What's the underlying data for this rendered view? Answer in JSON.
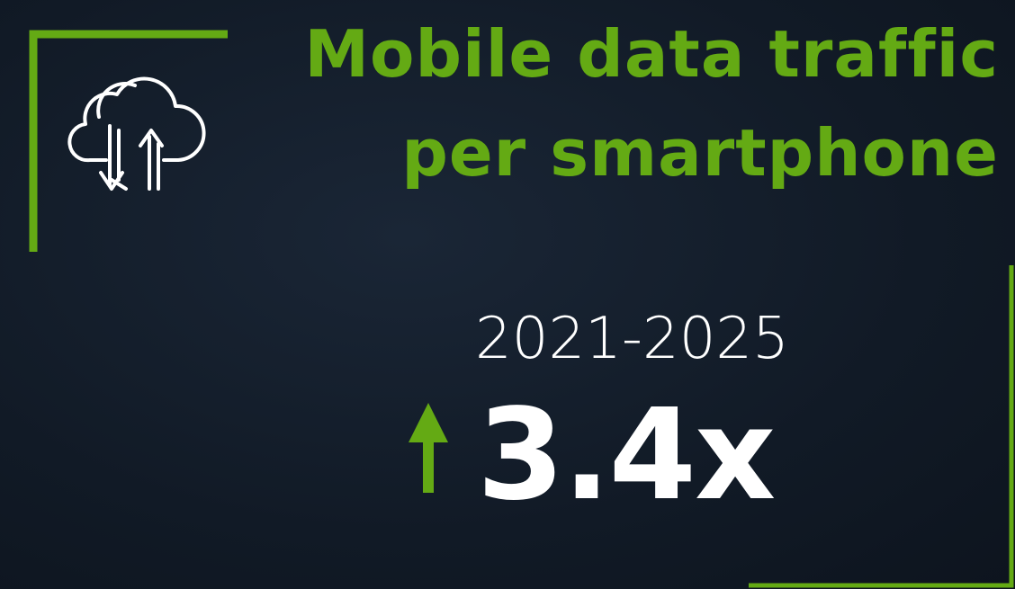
{
  "title": {
    "line1": "Mobile data traffic",
    "line2": "per smartphone"
  },
  "period": "2021-2025",
  "growth": "3.4x"
}
